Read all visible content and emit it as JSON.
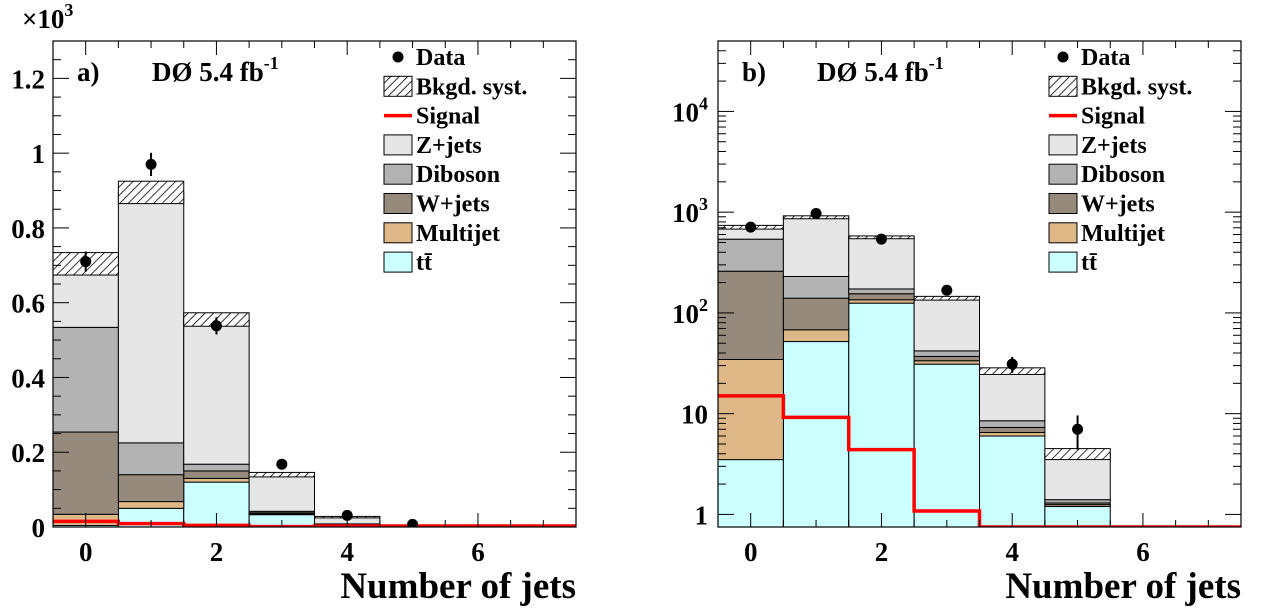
{
  "colors": {
    "ttbar": "#ccffff",
    "multijet": "#deb887",
    "wjets": "#968a7d",
    "diboson": "#b3b3b3",
    "zjets": "#e6e6e6",
    "signal": "#ff0000",
    "data": "#000000"
  },
  "legend": [
    {
      "key": "data",
      "label": "Data",
      "kind": "marker"
    },
    {
      "key": "syst",
      "label": "Bkgd. syst.",
      "kind": "hatch"
    },
    {
      "key": "signal",
      "label": "Signal",
      "kind": "line"
    },
    {
      "key": "zjets",
      "label": "Z+jets",
      "kind": "box"
    },
    {
      "key": "diboson",
      "label": "Diboson",
      "kind": "box"
    },
    {
      "key": "wjets",
      "label": "W+jets",
      "kind": "box"
    },
    {
      "key": "multijet",
      "label": "Multijet",
      "kind": "box"
    },
    {
      "key": "ttbar",
      "label": "tt̄",
      "kind": "box"
    }
  ],
  "chart_data": [
    {
      "type": "bar",
      "panel_label": "a)",
      "experiment_label": "DØ 5.4 fb",
      "experiment_superscript": "-1",
      "xlabel": "Number of jets",
      "y_multiplier_base": "×10",
      "y_multiplier_exp": "3",
      "y_scale": "linear",
      "xlim": [
        -0.5,
        7.5
      ],
      "ylim": [
        0,
        1.3
      ],
      "xticks": [
        0,
        2,
        4,
        6
      ],
      "xtick_labels": [
        "0",
        "2",
        "4",
        "6"
      ],
      "yticks": [
        0,
        0.2,
        0.4,
        0.6,
        0.8,
        1.0,
        1.2
      ],
      "ytick_labels": [
        "0",
        "0.2",
        "0.4",
        "0.6",
        "0.8",
        "1",
        "1.2"
      ],
      "units": "thousands of events",
      "bins": [
        0,
        1,
        2,
        3,
        4,
        5,
        6,
        7
      ],
      "stack": [
        {
          "key": "ttbar",
          "name": "tt̄",
          "values": [
            0.004,
            0.05,
            0.12,
            0.033,
            0.006,
            0.0012,
            0,
            0
          ]
        },
        {
          "key": "multijet",
          "name": "Multijet",
          "values": [
            0.03,
            0.018,
            0.01,
            0.002,
            0.0005,
            0,
            0,
            0
          ]
        },
        {
          "key": "wjets",
          "name": "W+jets",
          "values": [
            0.22,
            0.072,
            0.02,
            0.003,
            0.0008,
            0.0001,
            0,
            0
          ]
        },
        {
          "key": "diboson",
          "name": "Diboson",
          "values": [
            0.28,
            0.085,
            0.018,
            0.004,
            0.001,
            0.0001,
            0,
            0
          ]
        },
        {
          "key": "zjets",
          "name": "Z+jets",
          "values": [
            0.17,
            0.67,
            0.387,
            0.098,
            0.018,
            0.0026,
            0,
            0
          ]
        }
      ],
      "syst_band": [
        0.03,
        0.03,
        0.018,
        0.006,
        0.002,
        0.0005,
        0,
        0
      ],
      "signal": [
        0.015,
        0.009,
        0.0044,
        0.0011,
        0,
        0,
        0,
        0
      ],
      "data": [
        {
          "x": 0,
          "y": 0.71,
          "err": 0.027
        },
        {
          "x": 1,
          "y": 0.97,
          "err": 0.031
        },
        {
          "x": 2,
          "y": 0.538,
          "err": 0.023
        },
        {
          "x": 3,
          "y": 0.168,
          "err": 0.013
        },
        {
          "x": 4,
          "y": 0.031,
          "err": 0.0056
        },
        {
          "x": 5,
          "y": 0.007,
          "err": 0.0026
        }
      ]
    },
    {
      "type": "bar",
      "panel_label": "b)",
      "experiment_label": "DØ 5.4 fb",
      "experiment_superscript": "-1",
      "xlabel": "Number of jets",
      "y_scale": "log",
      "xlim": [
        -0.5,
        7.5
      ],
      "ylim": [
        0.75,
        50000
      ],
      "xticks": [
        0,
        2,
        4,
        6
      ],
      "xtick_labels": [
        "0",
        "2",
        "4",
        "6"
      ],
      "yticks": [
        1,
        10,
        100,
        1000,
        10000
      ],
      "ytick_labels": [
        {
          "base": "1",
          "exp": ""
        },
        {
          "base": "10",
          "exp": ""
        },
        {
          "base": "10",
          "exp": "2"
        },
        {
          "base": "10",
          "exp": "3"
        },
        {
          "base": "10",
          "exp": "4"
        }
      ],
      "units": "events",
      "bins": [
        0,
        1,
        2,
        3,
        4,
        5,
        6,
        7
      ],
      "stack": [
        {
          "key": "ttbar",
          "name": "tt̄",
          "values": [
            3.5,
            52,
            125,
            31,
            6.0,
            1.2,
            0,
            0
          ]
        },
        {
          "key": "multijet",
          "name": "Multijet",
          "values": [
            31,
            16,
            10,
            2.5,
            0.5,
            0.05,
            0,
            0
          ]
        },
        {
          "key": "wjets",
          "name": "W+jets",
          "values": [
            225,
            72,
            20,
            3.5,
            0.8,
            0.05,
            0,
            0
          ]
        },
        {
          "key": "diboson",
          "name": "Diboson",
          "values": [
            280,
            90,
            18,
            5,
            1.2,
            0.1,
            0,
            0
          ]
        },
        {
          "key": "zjets",
          "name": "Z+jets",
          "values": [
            170,
            660,
            390,
            98,
            18,
            2.6,
            0,
            0
          ]
        }
      ],
      "syst_band": [
        30,
        30,
        18,
        6,
        2,
        0.5,
        0,
        0
      ],
      "signal": [
        15,
        9.2,
        4.4,
        1.08,
        0.72,
        0.72,
        0.72,
        0.72
      ],
      "data": [
        {
          "x": 0,
          "y": 710,
          "err": 27
        },
        {
          "x": 1,
          "y": 970,
          "err": 31
        },
        {
          "x": 2,
          "y": 540,
          "err": 23
        },
        {
          "x": 3,
          "y": 168,
          "err": 13
        },
        {
          "x": 4,
          "y": 31,
          "err": 5.6
        },
        {
          "x": 5,
          "y": 7,
          "err": 2.6
        }
      ]
    }
  ]
}
